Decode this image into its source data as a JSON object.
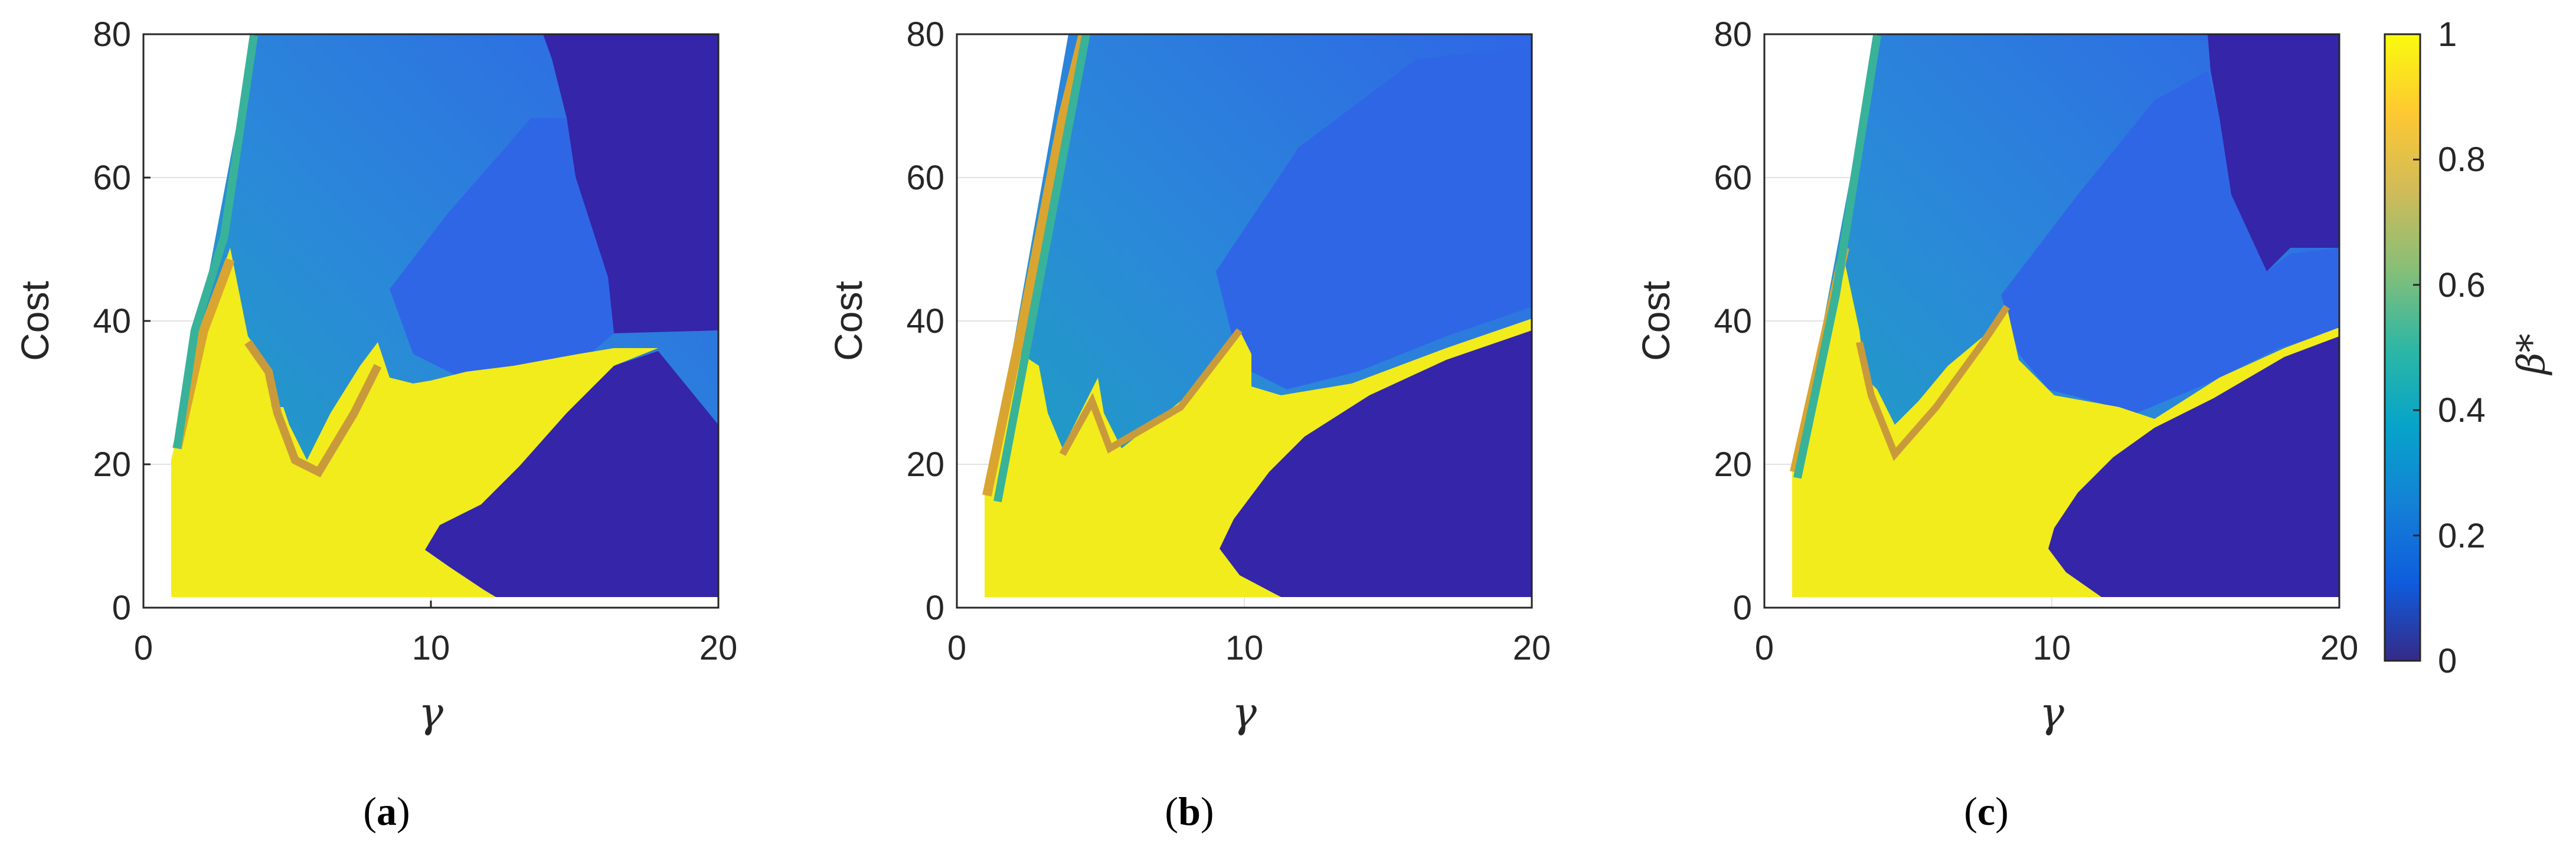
{
  "chart_data": [
    {
      "type": "heatmap",
      "panel": "a",
      "xlabel": "γ",
      "ylabel": "Cost",
      "xlim": [
        0,
        20
      ],
      "ylim": [
        0,
        80
      ],
      "xticks": [
        0,
        10,
        20
      ],
      "yticks": [
        0,
        20,
        40,
        60,
        80
      ],
      "grid": true,
      "z": "β*",
      "regions": [
        {
          "name": "full_beta",
          "value": 1.0,
          "note": "yellow region, low gamma and low cost"
        },
        {
          "name": "zero_beta_lower",
          "value": 0.0,
          "note": "dark region below boundary from (9.3,14) to (17.9,36)"
        },
        {
          "name": "zero_beta_upper",
          "value": 0.0,
          "note": "dark region right of x≈15 above cost 36"
        },
        {
          "name": "intermediate",
          "value": 0.3,
          "note": "blue-green fan region"
        }
      ],
      "boundary_tip": [
        17.9,
        36
      ]
    },
    {
      "type": "heatmap",
      "panel": "b",
      "xlabel": "γ",
      "ylabel": "Cost",
      "xlim": [
        0,
        20
      ],
      "ylim": [
        0,
        80
      ],
      "xticks": [
        0,
        10,
        20
      ],
      "yticks": [
        0,
        20,
        40,
        60,
        80
      ],
      "grid": true,
      "z": "β*",
      "regions": [
        {
          "name": "full_beta",
          "value": 1.0
        },
        {
          "name": "zero_beta_lower",
          "value": 0.0,
          "note": "dark region below boundary reaching (20,40)"
        },
        {
          "name": "intermediate",
          "value": 0.3
        }
      ]
    },
    {
      "type": "heatmap",
      "panel": "c",
      "xlabel": "γ",
      "ylabel": "Cost",
      "xlim": [
        0,
        20
      ],
      "ylim": [
        0,
        80
      ],
      "xticks": [
        0,
        10,
        20
      ],
      "yticks": [
        0,
        20,
        40,
        60,
        80
      ],
      "grid": true,
      "z": "β*",
      "regions": [
        {
          "name": "full_beta",
          "value": 1.0
        },
        {
          "name": "zero_beta_lower",
          "value": 0.0,
          "note": "dark region below boundary reaching (20,40)"
        },
        {
          "name": "zero_beta_upper",
          "value": 0.0,
          "note": "dark region top-right, x>15.5 and cost>50"
        },
        {
          "name": "intermediate",
          "value": 0.3
        }
      ]
    }
  ],
  "colorbar": {
    "label": "β*",
    "range": [
      0,
      1
    ],
    "ticks": [
      "0",
      "0.2",
      "0.4",
      "0.6",
      "0.8",
      "1"
    ],
    "colormap": "parula",
    "colors": [
      "#352a87",
      "#0f5cdd",
      "#1481d6",
      "#06a4ca",
      "#2eb7a4",
      "#87bf77",
      "#d1bb59",
      "#fec832",
      "#f9fb0e"
    ]
  },
  "panels": [
    {
      "label_open": "(",
      "label_letter": "a",
      "label_close": ")"
    },
    {
      "label_open": "(",
      "label_letter": "b",
      "label_close": ")"
    },
    {
      "label_open": "(",
      "label_letter": "c",
      "label_close": ")"
    }
  ],
  "axis": {
    "xlabel": "γ",
    "ylabel": "Cost",
    "xtick_labels": [
      "0",
      "10",
      "20"
    ],
    "ytick_labels": [
      "0",
      "20",
      "40",
      "60",
      "80"
    ]
  },
  "colors": {
    "yellow": "#f2ec1c",
    "dark": "#3525a8",
    "orange": "#d9a530",
    "teal": "#22a3b6",
    "blue": "#2f6fe4",
    "midblue": "#2a86d6",
    "grid": "#d6d6d6"
  }
}
